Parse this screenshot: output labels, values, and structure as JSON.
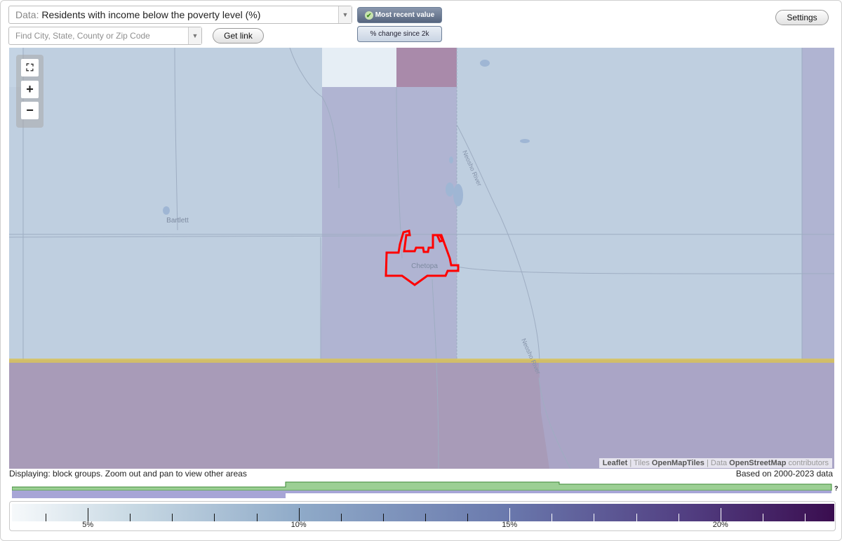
{
  "data_select": {
    "prefix": "Data:",
    "value": "Residents with income below the poverty level (%)"
  },
  "search": {
    "placeholder": "Find City, State, County or Zip Code"
  },
  "buttons": {
    "get_link": "Get link",
    "settings": "Settings"
  },
  "toggles": {
    "most_recent": "Most recent value",
    "pct_change": "% change since 2k"
  },
  "map": {
    "labels": {
      "bartlett": "Bartlett",
      "chetopa": "Chetopa",
      "river1": "Neosho River",
      "river2": "Neosho River"
    },
    "attribution": {
      "leaflet": "Leaflet",
      "sep1": " | Tiles ",
      "tiles": "OpenMapTiles",
      "sep2": " | Data ",
      "data": "OpenStreetMap",
      "contrib": " contributors"
    },
    "colors": {
      "base_light": "#bfcfe0",
      "mid": "#b0b4d2",
      "dark": "#a79ab8",
      "highlight": "#ff0000",
      "state_line": "#d8c35a"
    }
  },
  "status": {
    "displaying": "Displaying: block groups. Zoom out and pan to view other areas",
    "based_on": "Based on 2000-2023 data"
  },
  "histogram": {
    "question_mark": "?",
    "colors": {
      "green": "#9ccf94",
      "purple": "#a7a5d6"
    }
  },
  "legend": {
    "tick_labels": [
      "5%",
      "10%",
      "15%",
      "20%"
    ],
    "scale_min_pct": 3.2,
    "scale_max_pct": 22.7
  }
}
